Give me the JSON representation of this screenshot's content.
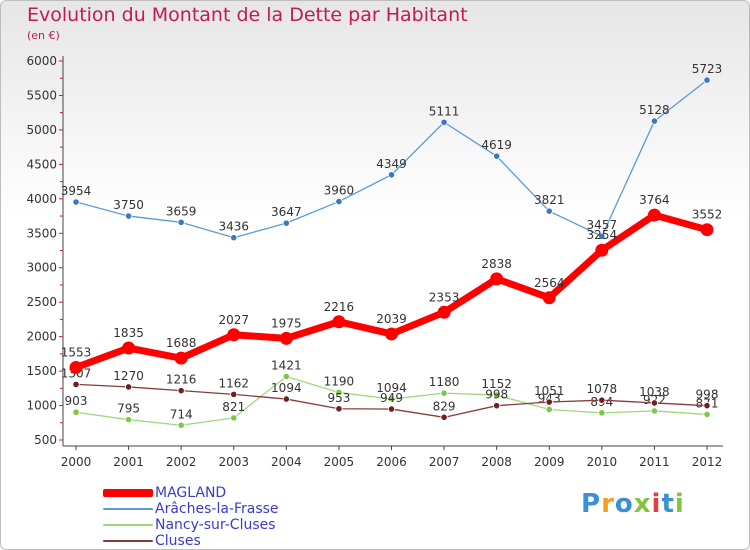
{
  "title": "Evolution du Montant de la Dette par Habitant",
  "subtitle": "(en €)",
  "logo": "Proxiti",
  "chart_data": {
    "type": "line",
    "x": [
      "2000",
      "2001",
      "2002",
      "2003",
      "2004",
      "2005",
      "2006",
      "2007",
      "2008",
      "2009",
      "2010",
      "2011",
      "2012"
    ],
    "ylim": [
      500,
      6000
    ],
    "yticks": [
      500,
      1000,
      1500,
      2000,
      2500,
      3000,
      3500,
      4000,
      4500,
      5000,
      5500,
      6000
    ],
    "grid": false,
    "legend": "bottom-left",
    "series": [
      {
        "name": "Arâches-la-Frasse",
        "color": "#5b9bd5",
        "marker": "#3a78c0",
        "values": [
          3954,
          3750,
          3659,
          3436,
          3647,
          3960,
          4349,
          5111,
          4619,
          3821,
          3457,
          5128,
          5723
        ]
      },
      {
        "name": "Nancy-sur-Cluses",
        "color": "#9fd87a",
        "marker": "#7ac943",
        "values": [
          903,
          795,
          714,
          821,
          1421,
          1190,
          1094,
          1180,
          1152,
          943,
          894,
          922,
          871
        ]
      },
      {
        "name": "Cluses",
        "color": "#8b3a3a",
        "marker": "#6e1f1f",
        "values": [
          1307,
          1270,
          1216,
          1162,
          1094,
          953,
          949,
          829,
          998,
          1051,
          1078,
          1038,
          998
        ]
      },
      {
        "name": "MAGLAND",
        "color": "#ff0000",
        "marker": "#ff0000",
        "values": [
          1553,
          1835,
          1688,
          2027,
          1975,
          2216,
          2039,
          2353,
          2838,
          2564,
          3254,
          3764,
          3552
        ]
      }
    ],
    "legend_order": [
      "MAGLAND",
      "Arâches-la-Frasse",
      "Nancy-sur-Cluses",
      "Cluses"
    ]
  }
}
